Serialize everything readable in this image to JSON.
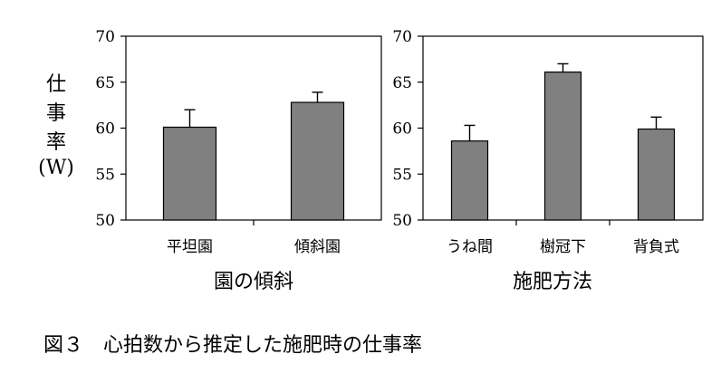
{
  "chart_data": [
    {
      "type": "bar",
      "xlabel": "園の傾斜",
      "ylabel": [
        "仕",
        "事",
        "率",
        "(W)"
      ],
      "categories": [
        "平坦園",
        "傾斜園"
      ],
      "values": [
        60.1,
        62.8
      ],
      "error": [
        1.9,
        1.1
      ],
      "ylim": [
        50,
        70
      ],
      "yticks": [
        "50",
        "55",
        "60",
        "65",
        "70"
      ],
      "bar_color": "#808080",
      "grid": false
    },
    {
      "type": "bar",
      "xlabel": "施肥方法",
      "ylabel": [],
      "categories": [
        "うね間",
        "樹冠下",
        "背負式"
      ],
      "values": [
        58.6,
        66.1,
        59.9
      ],
      "error": [
        1.7,
        0.9,
        1.3
      ],
      "ylim": [
        50,
        70
      ],
      "yticks": [
        "50",
        "55",
        "60",
        "65",
        "70"
      ],
      "bar_color": "#808080",
      "grid": false
    }
  ],
  "caption": "図３　心拍数から推定した施肥時の仕事率"
}
